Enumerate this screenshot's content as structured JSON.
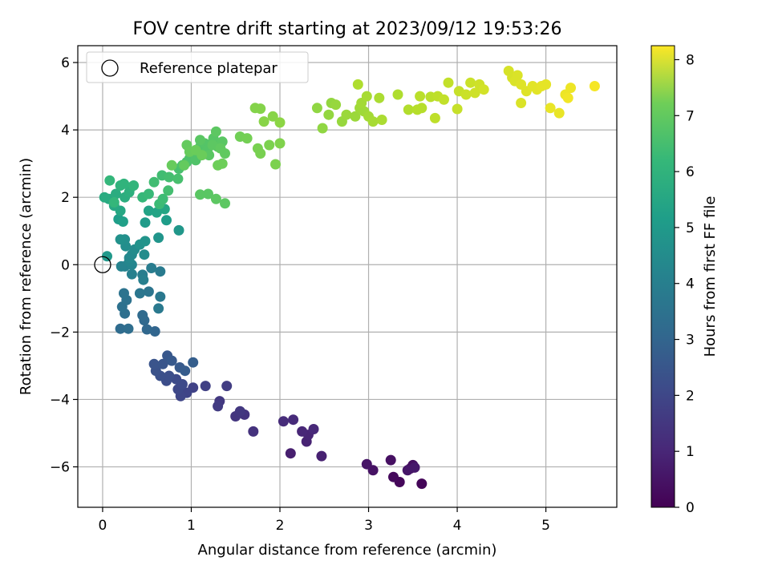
{
  "chart_data": {
    "type": "scatter",
    "title": "FOV centre drift starting at 2023/09/12 19:53:26",
    "xlabel": "Angular distance from reference (arcmin)",
    "ylabel": "Rotation from reference (arcmin)",
    "xlim": [
      -0.28,
      5.8
    ],
    "ylim": [
      -7.2,
      6.5
    ],
    "xticks": [
      0,
      1,
      2,
      3,
      4,
      5
    ],
    "yticks": [
      -6,
      -4,
      -2,
      0,
      2,
      4,
      6
    ],
    "xtick_labels": [
      "0",
      "1",
      "2",
      "3",
      "4",
      "5"
    ],
    "ytick_labels": [
      "−6",
      "−4",
      "−2",
      "0",
      "2",
      "4",
      "6"
    ],
    "grid": true,
    "legend": {
      "placement": "top-left",
      "entries": [
        "Reference platepar"
      ]
    },
    "reference_point": {
      "x": 0,
      "y": 0
    },
    "colorbar": {
      "label": "Hours from first FF file",
      "colormap": "viridis",
      "range": [
        0,
        8.25
      ],
      "ticks": [
        0,
        1,
        2,
        3,
        4,
        5,
        6,
        7,
        8
      ],
      "tick_labels": [
        "0",
        "1",
        "2",
        "3",
        "4",
        "5",
        "6",
        "7",
        "8"
      ]
    },
    "points": [
      [
        3.6,
        -6.5,
        0.1
      ],
      [
        3.35,
        -6.45,
        0.15
      ],
      [
        3.28,
        -6.3,
        0.2
      ],
      [
        3.47,
        -6.05,
        0.25
      ],
      [
        3.5,
        -5.95,
        0.3
      ],
      [
        3.25,
        -5.8,
        0.35
      ],
      [
        3.05,
        -6.1,
        0.4
      ],
      [
        2.98,
        -5.92,
        0.45
      ],
      [
        3.44,
        -6.1,
        0.5
      ],
      [
        3.52,
        -6.02,
        0.55
      ],
      [
        2.12,
        -5.6,
        0.7
      ],
      [
        2.47,
        -5.68,
        0.75
      ],
      [
        2.3,
        -5.25,
        0.8
      ],
      [
        2.32,
        -5.05,
        0.85
      ],
      [
        2.25,
        -4.95,
        0.9
      ],
      [
        2.38,
        -4.88,
        0.95
      ],
      [
        2.15,
        -4.6,
        1.0
      ],
      [
        2.04,
        -4.65,
        1.05
      ],
      [
        1.7,
        -4.95,
        1.2
      ],
      [
        1.6,
        -4.45,
        1.25
      ],
      [
        1.5,
        -4.5,
        1.3
      ],
      [
        1.55,
        -4.35,
        1.35
      ],
      [
        1.32,
        -4.05,
        1.4
      ],
      [
        1.3,
        -4.2,
        1.45
      ],
      [
        1.4,
        -3.6,
        1.5
      ],
      [
        1.16,
        -3.6,
        1.6
      ],
      [
        1.02,
        -3.65,
        1.65
      ],
      [
        0.95,
        -3.8,
        1.7
      ],
      [
        0.88,
        -3.9,
        1.75
      ],
      [
        0.85,
        -3.7,
        1.8
      ],
      [
        0.9,
        -3.55,
        1.85
      ],
      [
        0.83,
        -3.4,
        1.9
      ],
      [
        0.72,
        -3.45,
        1.95
      ],
      [
        0.75,
        -3.3,
        2.0
      ],
      [
        0.65,
        -3.3,
        2.05
      ],
      [
        0.6,
        -3.15,
        2.1
      ],
      [
        0.58,
        -2.95,
        2.15
      ],
      [
        0.68,
        -2.95,
        2.2
      ],
      [
        0.73,
        -2.7,
        2.25
      ],
      [
        0.78,
        -2.85,
        2.3
      ],
      [
        0.87,
        -3.05,
        2.35
      ],
      [
        0.93,
        -3.15,
        2.4
      ],
      [
        1.02,
        -2.9,
        2.45
      ],
      [
        0.59,
        -1.98,
        2.7
      ],
      [
        0.5,
        -1.92,
        2.75
      ],
      [
        0.47,
        -1.65,
        2.8
      ],
      [
        0.45,
        -1.5,
        2.85
      ],
      [
        0.2,
        -1.9,
        2.9
      ],
      [
        0.29,
        -1.9,
        2.95
      ],
      [
        0.25,
        -1.45,
        3.0
      ],
      [
        0.22,
        -1.25,
        3.05
      ],
      [
        0.27,
        -1.05,
        3.1
      ],
      [
        0.24,
        -0.85,
        3.15
      ],
      [
        0.52,
        -0.8,
        3.2
      ],
      [
        0.42,
        -0.85,
        3.25
      ],
      [
        0.65,
        -0.95,
        3.3
      ],
      [
        0.63,
        -1.3,
        3.35
      ],
      [
        0.65,
        -0.2,
        3.4
      ],
      [
        0.55,
        -0.1,
        3.45
      ],
      [
        0.45,
        -0.3,
        3.5
      ],
      [
        0.46,
        -0.45,
        3.55
      ],
      [
        0.33,
        -0.28,
        3.6
      ],
      [
        0.25,
        -0.05,
        3.65
      ],
      [
        0.21,
        -0.05,
        3.7
      ],
      [
        0.33,
        0.0,
        3.75
      ],
      [
        0.3,
        0.1,
        3.8
      ],
      [
        0.3,
        0.2,
        3.85
      ],
      [
        0.33,
        0.3,
        3.9
      ],
      [
        0.36,
        0.45,
        3.95
      ],
      [
        0.47,
        0.3,
        4.0
      ],
      [
        0.26,
        0.55,
        4.05
      ],
      [
        0.25,
        0.75,
        4.1
      ],
      [
        0.2,
        0.75,
        4.15
      ],
      [
        0.42,
        0.6,
        4.2
      ],
      [
        0.48,
        0.7,
        4.25
      ],
      [
        0.63,
        0.8,
        4.3
      ],
      [
        0.86,
        1.02,
        4.35
      ],
      [
        0.05,
        0.25,
        4.4
      ],
      [
        0.48,
        1.25,
        4.5
      ],
      [
        0.72,
        1.32,
        4.55
      ],
      [
        0.18,
        1.35,
        4.6
      ],
      [
        0.23,
        1.28,
        4.65
      ],
      [
        0.52,
        1.6,
        4.75
      ],
      [
        0.61,
        1.55,
        4.8
      ],
      [
        0.7,
        1.65,
        4.85
      ],
      [
        0.2,
        1.6,
        4.9
      ],
      [
        0.13,
        1.75,
        4.95
      ],
      [
        0.07,
        1.95,
        5.0
      ],
      [
        0.02,
        2.0,
        5.05
      ],
      [
        0.15,
        2.1,
        5.1
      ],
      [
        0.25,
        2.0,
        5.15
      ],
      [
        0.3,
        2.15,
        5.2
      ],
      [
        0.32,
        2.3,
        5.25
      ],
      [
        0.2,
        2.35,
        5.3
      ],
      [
        0.24,
        2.4,
        5.35
      ],
      [
        0.35,
        2.35,
        5.4
      ],
      [
        0.08,
        2.5,
        5.45
      ],
      [
        0.13,
        1.85,
        5.45
      ],
      [
        0.45,
        2.0,
        5.5
      ],
      [
        0.52,
        2.1,
        5.55
      ],
      [
        0.64,
        1.8,
        5.6
      ],
      [
        0.68,
        1.95,
        5.65
      ],
      [
        0.58,
        2.45,
        5.7
      ],
      [
        0.67,
        2.65,
        5.7
      ],
      [
        0.75,
        2.6,
        5.75
      ],
      [
        0.74,
        2.2,
        5.75
      ],
      [
        0.85,
        2.55,
        5.8
      ],
      [
        0.86,
        2.85,
        5.8
      ],
      [
        0.9,
        2.95,
        5.85
      ],
      [
        0.95,
        3.05,
        5.85
      ],
      [
        0.98,
        3.15,
        5.9
      ],
      [
        1.0,
        3.3,
        5.9
      ],
      [
        1.05,
        3.1,
        5.95
      ],
      [
        1.1,
        3.5,
        5.95
      ],
      [
        1.15,
        3.6,
        6.0
      ],
      [
        1.18,
        3.4,
        6.0
      ],
      [
        1.25,
        3.75,
        6.05
      ],
      [
        1.3,
        3.5,
        6.05
      ],
      [
        1.35,
        3.65,
        6.1
      ],
      [
        1.1,
        3.7,
        6.1
      ],
      [
        1.2,
        3.25,
        6.1
      ],
      [
        1.24,
        3.55,
        6.15
      ],
      [
        1.28,
        3.95,
        6.15
      ],
      [
        1.33,
        3.45,
        6.2
      ],
      [
        1.38,
        3.3,
        6.2
      ],
      [
        0.95,
        3.55,
        6.25
      ],
      [
        0.92,
        2.95,
        6.25
      ],
      [
        0.78,
        2.95,
        6.3
      ],
      [
        0.98,
        3.35,
        6.3
      ],
      [
        1.05,
        3.4,
        6.35
      ],
      [
        1.12,
        3.25,
        6.35
      ],
      [
        1.3,
        2.95,
        6.4
      ],
      [
        1.35,
        3.0,
        6.4
      ],
      [
        1.19,
        2.1,
        6.1
      ],
      [
        1.1,
        2.08,
        6.1
      ],
      [
        1.28,
        1.95,
        6.15
      ],
      [
        1.38,
        1.82,
        6.15
      ],
      [
        1.55,
        3.8,
        6.45
      ],
      [
        1.63,
        3.75,
        6.5
      ],
      [
        1.75,
        3.45,
        6.55
      ],
      [
        1.78,
        3.3,
        6.55
      ],
      [
        1.88,
        3.55,
        6.6
      ],
      [
        1.95,
        2.98,
        6.6
      ],
      [
        2.0,
        3.6,
        6.65
      ],
      [
        1.72,
        4.65,
        6.7
      ],
      [
        1.78,
        4.63,
        6.7
      ],
      [
        1.82,
        4.25,
        6.75
      ],
      [
        1.92,
        4.4,
        6.75
      ],
      [
        2.0,
        4.22,
        6.8
      ],
      [
        2.42,
        4.65,
        6.85
      ],
      [
        2.48,
        4.05,
        6.85
      ],
      [
        2.55,
        4.45,
        6.9
      ],
      [
        2.58,
        4.8,
        6.9
      ],
      [
        2.63,
        4.75,
        6.95
      ],
      [
        2.7,
        4.25,
        6.95
      ],
      [
        2.75,
        4.45,
        7.0
      ],
      [
        2.85,
        4.4,
        7.0
      ],
      [
        2.9,
        4.65,
        7.05
      ],
      [
        2.95,
        4.55,
        7.05
      ],
      [
        2.92,
        4.8,
        7.1
      ],
      [
        3.0,
        4.4,
        7.1
      ],
      [
        3.05,
        4.25,
        7.15
      ],
      [
        2.98,
        5.0,
        7.15
      ],
      [
        3.12,
        4.95,
        7.2
      ],
      [
        3.15,
        4.3,
        7.2
      ],
      [
        2.88,
        5.35,
        7.25
      ],
      [
        3.33,
        5.05,
        7.25
      ],
      [
        3.45,
        4.6,
        7.3
      ],
      [
        3.55,
        4.6,
        7.35
      ],
      [
        3.6,
        4.65,
        7.35
      ],
      [
        3.58,
        5.0,
        7.4
      ],
      [
        3.7,
        4.98,
        7.4
      ],
      [
        3.75,
        4.35,
        7.45
      ],
      [
        3.78,
        5.0,
        7.45
      ],
      [
        3.85,
        4.9,
        7.5
      ],
      [
        3.9,
        5.4,
        7.5
      ],
      [
        4.0,
        4.62,
        7.55
      ],
      [
        4.02,
        5.15,
        7.55
      ],
      [
        4.1,
        5.05,
        7.6
      ],
      [
        4.15,
        5.4,
        7.6
      ],
      [
        4.2,
        5.1,
        7.65
      ],
      [
        4.25,
        5.35,
        7.65
      ],
      [
        4.3,
        5.2,
        7.7
      ],
      [
        4.58,
        5.75,
        7.75
      ],
      [
        4.62,
        5.55,
        7.75
      ],
      [
        4.65,
        5.45,
        7.8
      ],
      [
        4.68,
        5.62,
        7.8
      ],
      [
        4.72,
        5.35,
        7.85
      ],
      [
        4.78,
        5.15,
        7.85
      ],
      [
        4.85,
        5.3,
        7.9
      ],
      [
        4.9,
        5.2,
        7.9
      ],
      [
        4.95,
        5.3,
        7.95
      ],
      [
        5.0,
        5.35,
        7.95
      ],
      [
        5.05,
        4.65,
        8.0
      ],
      [
        5.15,
        4.5,
        8.0
      ],
      [
        5.22,
        5.05,
        8.05
      ],
      [
        5.28,
        5.25,
        8.05
      ],
      [
        5.25,
        4.95,
        8.1
      ],
      [
        5.55,
        5.3,
        8.15
      ],
      [
        4.72,
        4.8,
        7.8
      ]
    ]
  }
}
